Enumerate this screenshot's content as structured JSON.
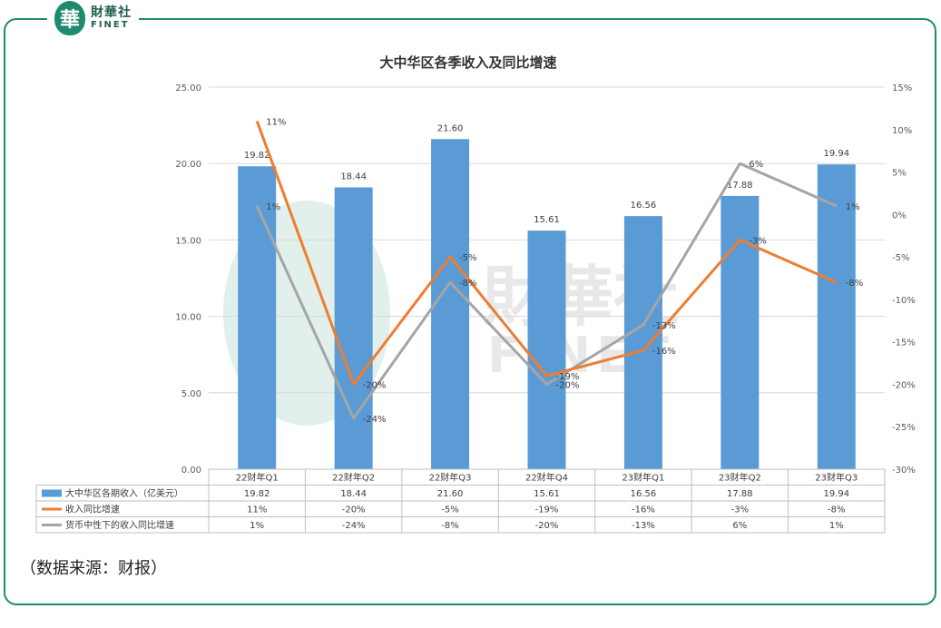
{
  "header": {
    "logo_mark": "華",
    "logo_cn": "財華社",
    "logo_en": "FINET"
  },
  "watermark": {
    "cn": "財華社",
    "en": "FINET"
  },
  "source_note": "（数据来源：财报）",
  "chart_data": {
    "type": "bar",
    "title": "大中华区各季收入及同比增速",
    "categories": [
      "22财年Q1",
      "22财年Q2",
      "22财年Q3",
      "22财年Q4",
      "23财年Q1",
      "23财年Q2",
      "23财年Q3"
    ],
    "left_axis": {
      "ylim": [
        0,
        25
      ],
      "ticks": [
        "0.00",
        "5.00",
        "10.00",
        "15.00",
        "20.00",
        "25.00"
      ]
    },
    "right_axis": {
      "ylim": [
        -30,
        15
      ],
      "ticks": [
        "-30%",
        "-25%",
        "-20%",
        "-15%",
        "-10%",
        "-5%",
        "0%",
        "5%",
        "10%",
        "15%"
      ]
    },
    "grid": true,
    "legend": "table-below",
    "series": [
      {
        "name": "大中华区各期收入（亿美元）",
        "type": "bar",
        "axis": "left",
        "color": "#5b9bd5",
        "values": [
          19.82,
          18.44,
          21.6,
          15.61,
          16.56,
          17.88,
          19.94
        ],
        "labels": [
          "19.82",
          "18.44",
          "21.60",
          "15.61",
          "16.56",
          "17.88",
          "19.94"
        ]
      },
      {
        "name": "收入同比增速",
        "type": "line",
        "axis": "right",
        "color": "#ed7d31",
        "values": [
          11,
          -20,
          -5,
          -19,
          -16,
          -3,
          -8
        ],
        "labels": [
          "11%",
          "-20%",
          "-5%",
          "-19%",
          "-16%",
          "-3%",
          "-8%"
        ]
      },
      {
        "name": "货币中性下的收入同比增速",
        "type": "line",
        "axis": "right",
        "color": "#a5a5a5",
        "values": [
          1,
          -24,
          -8,
          -20,
          -13,
          6,
          1
        ],
        "labels": [
          "1%",
          "-24%",
          "-8%",
          "-20%",
          "-13%",
          "6%",
          "1%"
        ]
      }
    ]
  }
}
